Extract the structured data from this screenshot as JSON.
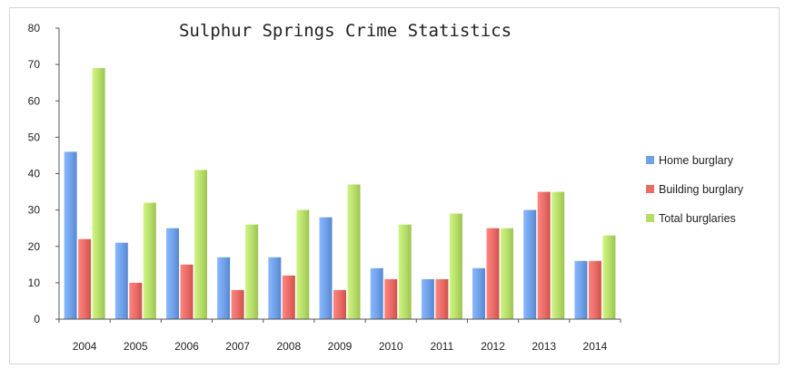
{
  "chart_data": {
    "type": "bar",
    "title": "Sulphur Springs Crime Statistics",
    "xlabel": "",
    "ylabel": "",
    "categories": [
      "2004",
      "2005",
      "2006",
      "2007",
      "2008",
      "2009",
      "2010",
      "2011",
      "2012",
      "2013",
      "2014"
    ],
    "series": [
      {
        "name": "Home burglary",
        "color": "#6fa0e8",
        "values": [
          46,
          21,
          25,
          17,
          17,
          28,
          14,
          11,
          14,
          30,
          16
        ]
      },
      {
        "name": "Building burglary",
        "color": "#e86b66",
        "values": [
          22,
          10,
          15,
          8,
          12,
          8,
          11,
          11,
          25,
          35,
          16
        ]
      },
      {
        "name": "Total burglaries",
        "color": "#b6dc6a",
        "values": [
          69,
          32,
          41,
          26,
          30,
          37,
          26,
          29,
          25,
          35,
          23
        ]
      }
    ],
    "ylim": [
      0,
      80
    ],
    "yticks": [
      0,
      10,
      20,
      30,
      40,
      50,
      60,
      70,
      80
    ],
    "grid": false,
    "legend_position": "right"
  }
}
